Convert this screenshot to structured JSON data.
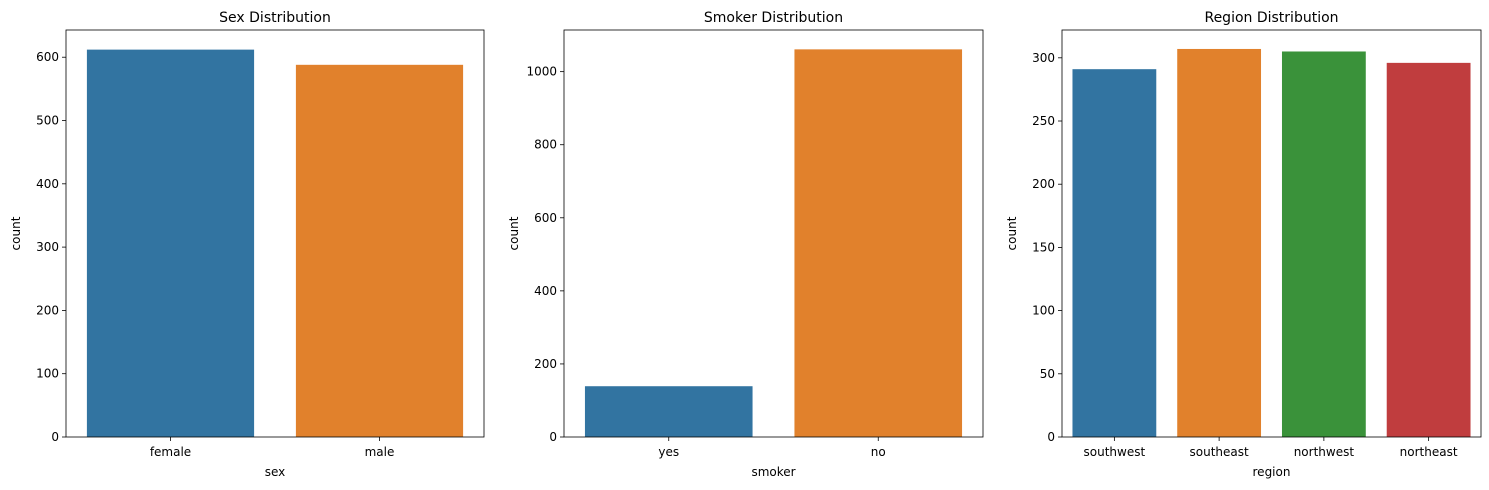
{
  "chart_data": [
    {
      "type": "bar",
      "title": "Sex Distribution",
      "xlabel": "sex",
      "ylabel": "count",
      "categories": [
        "female",
        "male"
      ],
      "values": [
        612,
        588
      ],
      "colors": [
        "#3274a1",
        "#e1812c"
      ],
      "ylim": [
        0,
        643
      ],
      "yticks": [
        0,
        100,
        200,
        300,
        400,
        500,
        600
      ]
    },
    {
      "type": "bar",
      "title": "Smoker Distribution",
      "xlabel": "smoker",
      "ylabel": "count",
      "categories": [
        "yes",
        "no"
      ],
      "values": [
        139,
        1061
      ],
      "colors": [
        "#3274a1",
        "#e1812c"
      ],
      "ylim": [
        0,
        1114
      ],
      "yticks": [
        0,
        200,
        400,
        600,
        800,
        1000
      ]
    },
    {
      "type": "bar",
      "title": "Region Distribution",
      "xlabel": "region",
      "ylabel": "count",
      "categories": [
        "southwest",
        "southeast",
        "northwest",
        "northeast"
      ],
      "values": [
        291,
        307,
        305,
        296
      ],
      "colors": [
        "#3274a1",
        "#e1812c",
        "#3a923a",
        "#c03d3e"
      ],
      "ylim": [
        0,
        322
      ],
      "yticks": [
        0,
        50,
        100,
        150,
        200,
        250,
        300
      ]
    }
  ]
}
